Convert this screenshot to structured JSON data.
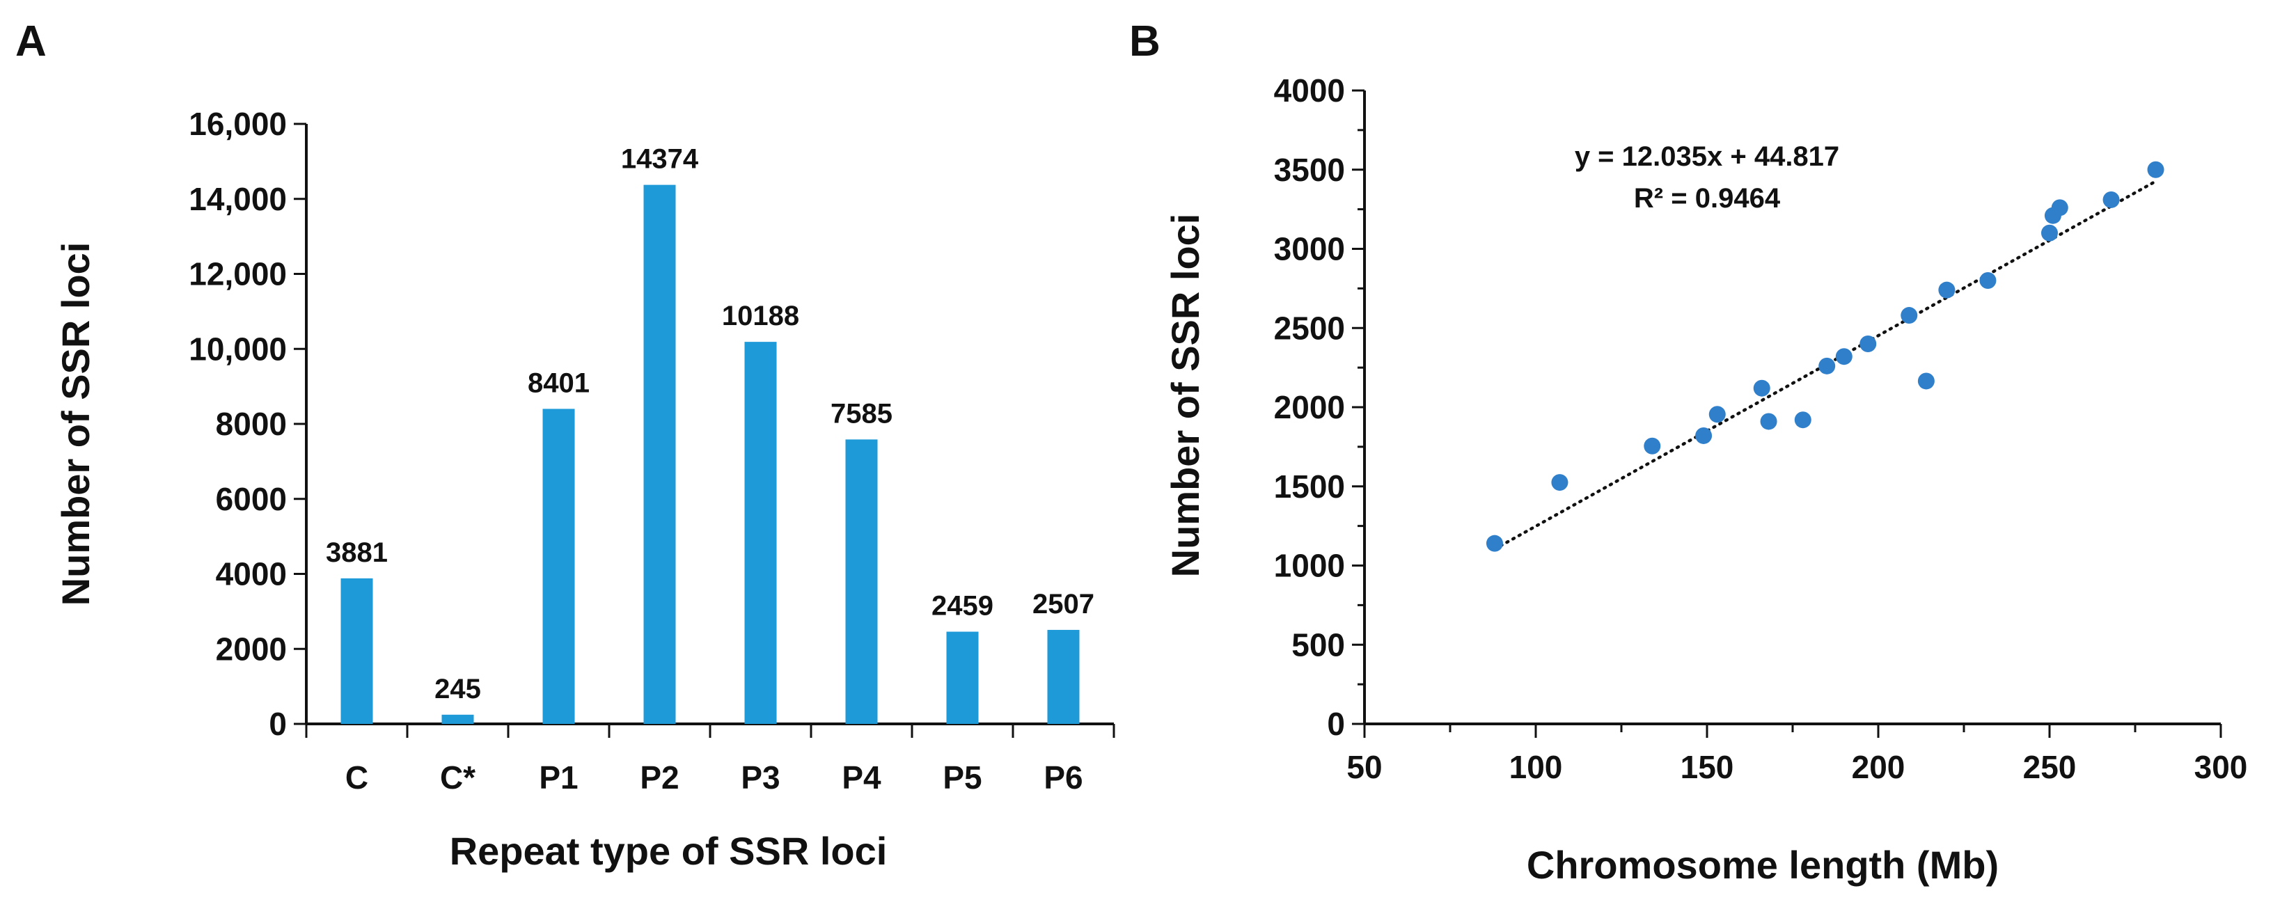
{
  "chart_data": [
    {
      "type": "bar",
      "panel_label": "A",
      "title": "",
      "xlabel": "Repeat type of SSR loci",
      "ylabel": "Number of SSR loci",
      "ylim": [
        0,
        16000
      ],
      "yticks": [
        0,
        2000,
        4000,
        6000,
        8000,
        10000,
        12000,
        14000,
        16000
      ],
      "ytick_labels": [
        "0",
        "2000",
        "4000",
        "6000",
        "8000",
        "10,000",
        "12,000",
        "14,000",
        "16,000"
      ],
      "categories": [
        "C",
        "C*",
        "P1",
        "P2",
        "P3",
        "P4",
        "P5",
        "P6"
      ],
      "values": [
        3881,
        245,
        8401,
        14374,
        10188,
        7585,
        2459,
        2507
      ],
      "bar_color": "#1f9ad8",
      "grid": false,
      "legend": false
    },
    {
      "type": "scatter",
      "panel_label": "B",
      "title": "",
      "xlabel": "Chromosome length (Mb)",
      "ylabel": "Number of SSR loci",
      "xlim": [
        50,
        300
      ],
      "ylim": [
        0,
        4000
      ],
      "xticks": [
        50,
        100,
        150,
        200,
        250,
        300
      ],
      "xtick_labels": [
        "50",
        "100",
        "150",
        "200",
        "250",
        "300"
      ],
      "yticks": [
        0,
        500,
        1000,
        1500,
        2000,
        2500,
        3000,
        3500,
        4000
      ],
      "ytick_labels": [
        "0",
        "500",
        "1000",
        "1500",
        "2000",
        "2500",
        "3000",
        "3500",
        "4000"
      ],
      "points": [
        {
          "x": 88,
          "y": 1140
        },
        {
          "x": 107,
          "y": 1525
        },
        {
          "x": 134,
          "y": 1755
        },
        {
          "x": 149,
          "y": 1820
        },
        {
          "x": 153,
          "y": 1955
        },
        {
          "x": 166,
          "y": 2120
        },
        {
          "x": 168,
          "y": 1910
        },
        {
          "x": 178,
          "y": 1920
        },
        {
          "x": 185,
          "y": 2260
        },
        {
          "x": 190,
          "y": 2320
        },
        {
          "x": 197,
          "y": 2400
        },
        {
          "x": 209,
          "y": 2580
        },
        {
          "x": 214,
          "y": 2165
        },
        {
          "x": 220,
          "y": 2740
        },
        {
          "x": 232,
          "y": 2800
        },
        {
          "x": 250,
          "y": 3100
        },
        {
          "x": 251,
          "y": 3210
        },
        {
          "x": 253,
          "y": 3260
        },
        {
          "x": 268,
          "y": 3310
        },
        {
          "x": 281,
          "y": 3500
        }
      ],
      "trendline": {
        "slope": 12.035,
        "intercept": 44.817,
        "x_range": [
          88,
          281
        ],
        "style": "dotted"
      },
      "equation_text": "y = 12.035x + 44.817",
      "r2_text": "R² = 0.9464",
      "point_color": "#2f7fcb",
      "grid": false,
      "legend": false
    }
  ]
}
